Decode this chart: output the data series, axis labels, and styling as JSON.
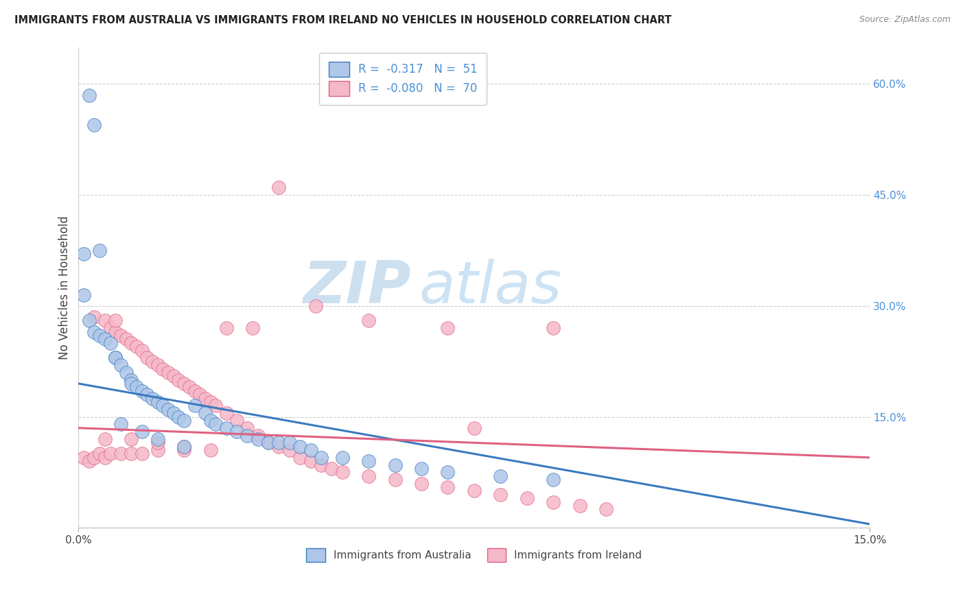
{
  "title": "IMMIGRANTS FROM AUSTRALIA VS IMMIGRANTS FROM IRELAND NO VEHICLES IN HOUSEHOLD CORRELATION CHART",
  "source": "Source: ZipAtlas.com",
  "ylabel": "No Vehicles in Household",
  "xlim": [
    0.0,
    0.15
  ],
  "ylim": [
    0.0,
    0.65
  ],
  "yticks_right": [
    0.15,
    0.3,
    0.45,
    0.6
  ],
  "yticklabels_right": [
    "15.0%",
    "30.0%",
    "45.0%",
    "60.0%"
  ],
  "legend_labels": [
    "Immigrants from Australia",
    "Immigrants from Ireland"
  ],
  "legend_R": [
    "-0.317",
    "-0.080"
  ],
  "legend_N": [
    "51",
    "70"
  ],
  "color_australia": "#aec6e8",
  "color_ireland": "#f5b8c8",
  "line_color_australia": "#3a7abf",
  "line_color_ireland": "#e06080",
  "watermark_zip": "ZIP",
  "watermark_atlas": "atlas",
  "aus_line_x0": 0.0,
  "aus_line_y0": 0.195,
  "aus_line_x1": 0.15,
  "aus_line_y1": 0.005,
  "ire_line_x0": 0.0,
  "ire_line_y0": 0.135,
  "ire_line_x1": 0.15,
  "ire_line_y1": 0.095,
  "aus_scatter_x": [
    0.002,
    0.003,
    0.004,
    0.001,
    0.001,
    0.002,
    0.003,
    0.004,
    0.005,
    0.006,
    0.007,
    0.007,
    0.008,
    0.009,
    0.01,
    0.01,
    0.011,
    0.012,
    0.013,
    0.014,
    0.015,
    0.016,
    0.017,
    0.018,
    0.019,
    0.02,
    0.022,
    0.024,
    0.025,
    0.026,
    0.028,
    0.03,
    0.032,
    0.034,
    0.036,
    0.038,
    0.04,
    0.042,
    0.044,
    0.046,
    0.05,
    0.055,
    0.06,
    0.065,
    0.07,
    0.08,
    0.09,
    0.008,
    0.012,
    0.015,
    0.02
  ],
  "aus_scatter_y": [
    0.585,
    0.545,
    0.375,
    0.315,
    0.37,
    0.28,
    0.265,
    0.26,
    0.255,
    0.25,
    0.23,
    0.23,
    0.22,
    0.21,
    0.2,
    0.195,
    0.19,
    0.185,
    0.18,
    0.175,
    0.17,
    0.165,
    0.16,
    0.155,
    0.15,
    0.145,
    0.165,
    0.155,
    0.145,
    0.14,
    0.135,
    0.13,
    0.125,
    0.12,
    0.115,
    0.115,
    0.115,
    0.11,
    0.105,
    0.095,
    0.095,
    0.09,
    0.085,
    0.08,
    0.075,
    0.07,
    0.065,
    0.14,
    0.13,
    0.12,
    0.11
  ],
  "ire_scatter_x": [
    0.001,
    0.002,
    0.003,
    0.003,
    0.004,
    0.005,
    0.005,
    0.006,
    0.006,
    0.007,
    0.008,
    0.008,
    0.009,
    0.01,
    0.01,
    0.011,
    0.012,
    0.012,
    0.013,
    0.014,
    0.015,
    0.015,
    0.016,
    0.017,
    0.018,
    0.019,
    0.02,
    0.02,
    0.021,
    0.022,
    0.023,
    0.024,
    0.025,
    0.026,
    0.028,
    0.03,
    0.032,
    0.034,
    0.036,
    0.038,
    0.04,
    0.042,
    0.044,
    0.046,
    0.048,
    0.05,
    0.055,
    0.06,
    0.065,
    0.07,
    0.075,
    0.08,
    0.085,
    0.09,
    0.095,
    0.1,
    0.038,
    0.045,
    0.028,
    0.007,
    0.033,
    0.055,
    0.07,
    0.09,
    0.075,
    0.005,
    0.01,
    0.015,
    0.02,
    0.025
  ],
  "ire_scatter_y": [
    0.095,
    0.09,
    0.285,
    0.095,
    0.1,
    0.28,
    0.095,
    0.27,
    0.1,
    0.265,
    0.26,
    0.1,
    0.255,
    0.25,
    0.1,
    0.245,
    0.24,
    0.1,
    0.23,
    0.225,
    0.22,
    0.105,
    0.215,
    0.21,
    0.205,
    0.2,
    0.195,
    0.105,
    0.19,
    0.185,
    0.18,
    0.175,
    0.17,
    0.165,
    0.155,
    0.145,
    0.135,
    0.125,
    0.115,
    0.11,
    0.105,
    0.095,
    0.09,
    0.085,
    0.08,
    0.075,
    0.07,
    0.065,
    0.06,
    0.055,
    0.05,
    0.045,
    0.04,
    0.035,
    0.03,
    0.025,
    0.46,
    0.3,
    0.27,
    0.28,
    0.27,
    0.28,
    0.27,
    0.27,
    0.135,
    0.12,
    0.12,
    0.115,
    0.11,
    0.105
  ]
}
